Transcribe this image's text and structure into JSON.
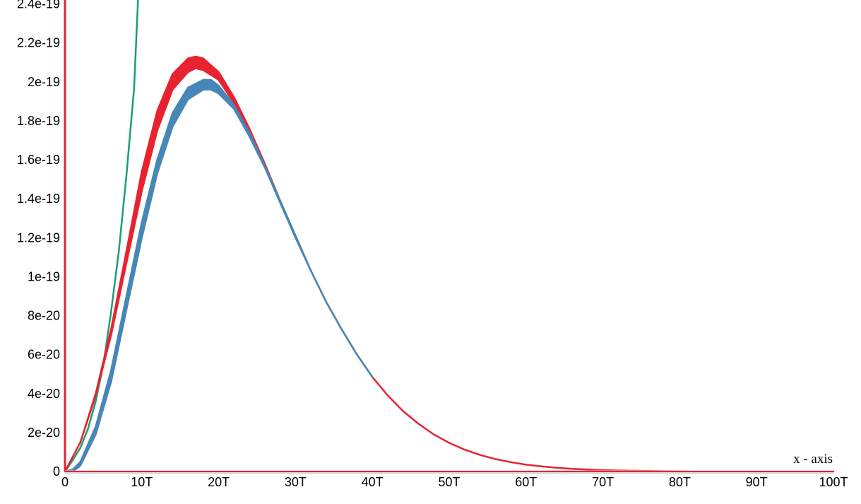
{
  "chart_data": {
    "type": "line",
    "title": "",
    "xlabel": "x - axis",
    "ylabel": "",
    "xlim": [
      0,
      100
    ],
    "ylim": [
      0,
      2.42e-19
    ],
    "x_ticks": [
      {
        "value": 0,
        "label": "0"
      },
      {
        "value": 10,
        "label": "10T"
      },
      {
        "value": 20,
        "label": "20T"
      },
      {
        "value": 30,
        "label": "30T"
      },
      {
        "value": 40,
        "label": "40T"
      },
      {
        "value": 50,
        "label": "50T"
      },
      {
        "value": 60,
        "label": "60T"
      },
      {
        "value": 70,
        "label": "70T"
      },
      {
        "value": 80,
        "label": "80T"
      },
      {
        "value": 90,
        "label": "90T"
      },
      {
        "value": 100,
        "label": "100T"
      }
    ],
    "y_ticks": [
      {
        "value": 0,
        "label": "0"
      },
      {
        "value": 2e-20,
        "label": "2e-20"
      },
      {
        "value": 4e-20,
        "label": "4e-20"
      },
      {
        "value": 6e-20,
        "label": "6e-20"
      },
      {
        "value": 8e-20,
        "label": "8e-20"
      },
      {
        "value": 1e-19,
        "label": "1e-19"
      },
      {
        "value": 1.2e-19,
        "label": "1.2e-19"
      },
      {
        "value": 1.4e-19,
        "label": "1.4e-19"
      },
      {
        "value": 1.6e-19,
        "label": "1.6e-19"
      },
      {
        "value": 1.8e-19,
        "label": "1.8e-19"
      },
      {
        "value": 2e-19,
        "label": "2e-19"
      },
      {
        "value": 2.2e-19,
        "label": "2.2e-19"
      },
      {
        "value": 2.4e-19,
        "label": "2.4e-19"
      }
    ],
    "grid": false,
    "legend": "none",
    "series": [
      {
        "color": "#1a9e77",
        "x": [
          0,
          1,
          2,
          3,
          4,
          5,
          6,
          7,
          8,
          9,
          9.5
        ],
        "y": [
          0,
          5.7e-21,
          1.22e-20,
          2.2e-20,
          3.6e-20,
          5.5e-20,
          8.2e-20,
          1.13e-19,
          1.52e-19,
          1.97e-19,
          2.42e-19
        ]
      },
      {
        "color": "#e8232f",
        "band": true,
        "x": [
          0,
          2,
          4,
          6,
          8,
          10,
          12,
          14,
          16,
          17,
          18,
          20,
          22,
          24,
          26,
          28,
          30,
          32,
          34,
          36,
          38,
          40,
          42,
          44,
          46,
          48,
          50,
          52,
          54,
          56,
          58,
          60,
          62,
          64,
          66,
          68,
          70,
          72,
          74,
          76,
          78,
          80,
          82,
          84,
          86,
          88,
          90,
          92,
          94,
          96,
          98,
          100
        ],
        "y_upper": [
          0,
          1.5e-20,
          4e-20,
          7.3e-20,
          1.13e-19,
          1.54e-19,
          1.85e-19,
          2.04e-19,
          2.12e-19,
          2.13e-19,
          2.12e-19,
          2.05e-19,
          1.92e-19,
          1.76e-19,
          1.58e-19,
          1.39e-19,
          1.21e-19,
          1.03e-19,
          8.7e-20,
          7.3e-20,
          6e-20,
          4.85e-20,
          3.9e-20,
          3.1e-20,
          2.45e-20,
          1.9e-20,
          1.47e-20,
          1.12e-20,
          8.5e-21,
          6.4e-21,
          4.8e-21,
          3.5e-21,
          2.6e-21,
          1.9e-21,
          1.35e-21,
          9.8e-22,
          7e-22,
          5e-22,
          3.5e-22,
          2.5e-22,
          1.8e-22,
          1.3e-22,
          9e-23,
          6e-23,
          4e-23,
          3e-23,
          2e-23,
          1e-23,
          1e-23,
          0,
          0,
          0
        ],
        "y_lower": [
          0,
          1.5e-20,
          3.9e-20,
          7e-20,
          1.07e-19,
          1.44e-19,
          1.75e-19,
          1.96e-19,
          2.05e-19,
          2.07e-19,
          2.06e-19,
          2.01e-19,
          1.89e-19,
          1.74e-19,
          1.57e-19,
          1.39e-19,
          1.21e-19,
          1.03e-19,
          8.7e-20,
          7.3e-20,
          6e-20,
          4.85e-20,
          3.9e-20,
          3.1e-20,
          2.45e-20,
          1.9e-20,
          1.47e-20,
          1.12e-20,
          8.5e-21,
          6.4e-21,
          4.8e-21,
          3.5e-21,
          2.6e-21,
          1.9e-21,
          1.35e-21,
          9.8e-22,
          7e-22,
          5e-22,
          3.5e-22,
          2.5e-22,
          1.8e-22,
          1.3e-22,
          9e-23,
          6e-23,
          4e-23,
          3e-23,
          2e-23,
          1e-23,
          1e-23,
          0,
          0,
          0
        ]
      },
      {
        "color": "#4687b8",
        "band": true,
        "x": [
          0,
          1,
          2,
          4,
          6,
          8,
          10,
          12,
          14,
          16,
          18,
          19,
          20,
          22,
          24,
          26,
          28,
          30,
          32,
          34,
          36,
          38,
          40
        ],
        "y_upper": [
          0,
          1e-21,
          5e-21,
          2.3e-20,
          5.2e-20,
          9e-20,
          1.28e-19,
          1.6e-19,
          1.84e-19,
          1.97e-19,
          2.01e-19,
          2.01e-19,
          1.98e-19,
          1.88e-19,
          1.74e-19,
          1.57e-19,
          1.39e-19,
          1.21e-19,
          1.03e-19,
          8.7e-20,
          7.3e-20,
          6e-20,
          4.85e-20
        ],
        "y_lower": [
          0,
          0,
          3e-21,
          1.9e-20,
          4.6e-20,
          8.3e-20,
          1.2e-19,
          1.53e-19,
          1.77e-19,
          1.91e-19,
          1.96e-19,
          1.96e-19,
          1.94e-19,
          1.86e-19,
          1.72e-19,
          1.56e-19,
          1.38e-19,
          1.2e-19,
          1.03e-19,
          8.7e-20,
          7.3e-20,
          6e-20,
          4.85e-20
        ]
      }
    ]
  }
}
